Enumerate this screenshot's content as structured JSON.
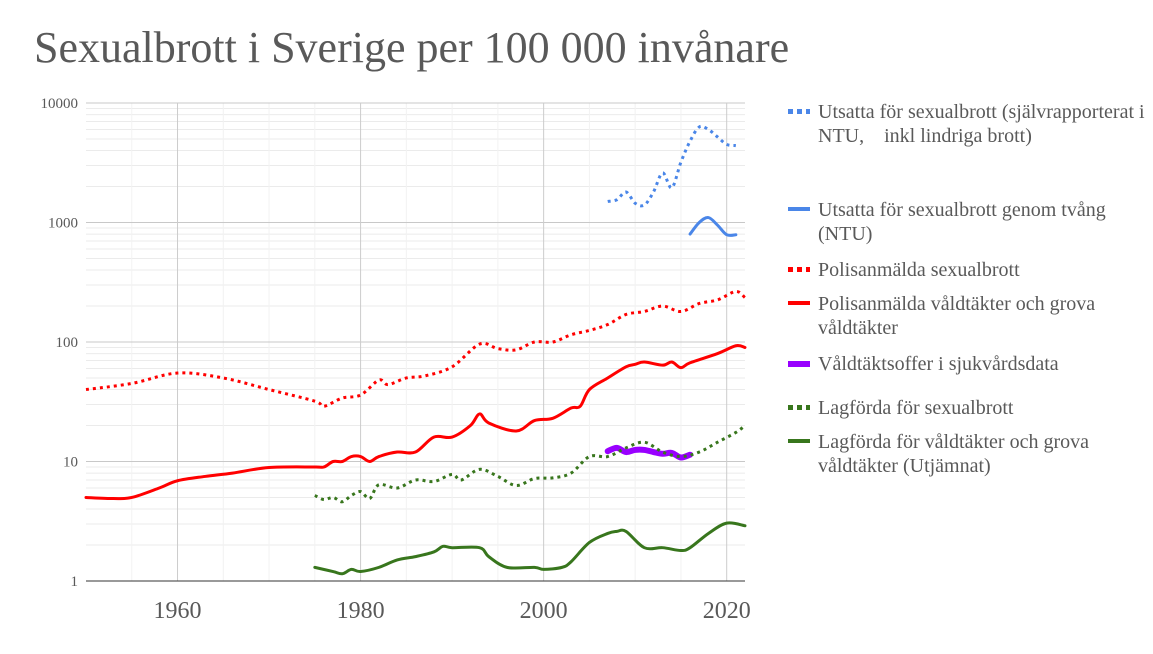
{
  "chart_data": {
    "type": "line",
    "title": "Sexualbrott i Sverige per 100 000 invånare",
    "y_scale": "log",
    "ylim": [
      1,
      10000
    ],
    "xlim": [
      1950,
      2022
    ],
    "x_ticks": [
      1960,
      1980,
      2000,
      2020
    ],
    "y_ticks": [
      1,
      10,
      100,
      1000,
      10000
    ],
    "grid": true,
    "legend_position": "right",
    "series": [
      {
        "name": "Utsatta för sexualbrott (självrapporterat i NTU,    inkl lindriga brott)",
        "color": "#4a86e8",
        "style": "dotted",
        "width": 3,
        "x": [
          2007,
          2008,
          2009,
          2010,
          2011,
          2012,
          2013,
          2014,
          2015,
          2016,
          2017,
          2018,
          2019,
          2020,
          2021
        ],
        "y": [
          1500,
          1550,
          1800,
          1450,
          1400,
          1800,
          2600,
          1950,
          3200,
          4800,
          6300,
          6000,
          5200,
          4500,
          4400
        ]
      },
      {
        "name": "Utsatta för sexualbrott genom tvång (NTU)",
        "color": "#4a86e8",
        "style": "solid",
        "width": 3,
        "x": [
          2016,
          2017,
          2018,
          2019,
          2020,
          2021
        ],
        "y": [
          800,
          1000,
          1100,
          950,
          790,
          790
        ]
      },
      {
        "name": "Polisanmälda sexualbrott",
        "color": "#ff0000",
        "style": "dotted",
        "width": 3,
        "x": [
          1950,
          1955,
          1960,
          1965,
          1970,
          1975,
          1976,
          1978,
          1980,
          1982,
          1983,
          1985,
          1987,
          1990,
          1993,
          1995,
          1997,
          1999,
          2001,
          2003,
          2005,
          2007,
          2009,
          2011,
          2013,
          2015,
          2017,
          2019,
          2021,
          2022
        ],
        "y": [
          40,
          45,
          55,
          50,
          40,
          32,
          29,
          34,
          36,
          48,
          44,
          50,
          52,
          62,
          96,
          88,
          86,
          100,
          100,
          115,
          125,
          140,
          170,
          180,
          200,
          180,
          210,
          225,
          265,
          235
        ]
      },
      {
        "name": "Polisanmälda våldtäkter och grova våldtäkter",
        "color": "#ff0000",
        "style": "solid",
        "width": 3,
        "x": [
          1950,
          1953,
          1955,
          1958,
          1960,
          1963,
          1966,
          1970,
          1975,
          1976,
          1977,
          1978,
          1979,
          1980,
          1981,
          1982,
          1984,
          1986,
          1988,
          1990,
          1992,
          1993,
          1994,
          1997,
          1999,
          2001,
          2003,
          2004,
          2005,
          2007,
          2009,
          2010,
          2011,
          2013,
          2014,
          2015,
          2016,
          2019,
          2021,
          2022
        ],
        "y": [
          5,
          4.9,
          5,
          6,
          6.9,
          7.5,
          8,
          8.9,
          9,
          9,
          10,
          10,
          11,
          11,
          10,
          11,
          12,
          12,
          16,
          16,
          20,
          25,
          21,
          18,
          22,
          23,
          28,
          29,
          40,
          50,
          62,
          65,
          68,
          64,
          68,
          61,
          67,
          80,
          93,
          90
        ]
      },
      {
        "name": "Våldtäktsoffer i sjukvårdsdata",
        "color": "#9900ff",
        "style": "solid",
        "width": 6,
        "x": [
          2007,
          2008,
          2009,
          2010,
          2011,
          2012,
          2013,
          2014,
          2015,
          2016
        ],
        "y": [
          12.2,
          13,
          12,
          12.5,
          12.5,
          12,
          11.6,
          11.8,
          10.8,
          11.4
        ]
      },
      {
        "name": "Lagförda för sexualbrott",
        "color": "#38761d",
        "style": "dotted",
        "width": 3,
        "x": [
          1975,
          1976,
          1977,
          1978,
          1979,
          1980,
          1981,
          1982,
          1984,
          1986,
          1988,
          1990,
          1991,
          1993,
          1995,
          1997,
          1999,
          2001,
          2003,
          2005,
          2007,
          2009,
          2011,
          2013,
          2015,
          2017,
          2019,
          2021,
          2022
        ],
        "y": [
          5.2,
          4.8,
          5,
          4.6,
          5.2,
          5.6,
          4.9,
          6.4,
          6,
          7,
          6.8,
          7.8,
          7,
          8.6,
          7.5,
          6.3,
          7.2,
          7.3,
          8,
          11,
          11,
          13,
          14.5,
          12,
          11,
          12,
          14.5,
          17.5,
          20
        ]
      },
      {
        "name": "Lagförda för våldtäkter och grova våldtäkter (Utjämnat)",
        "color": "#38761d",
        "style": "solid",
        "width": 3,
        "x": [
          1975,
          1977,
          1978,
          1979,
          1980,
          1982,
          1984,
          1986,
          1988,
          1989,
          1990,
          1993,
          1994,
          1996,
          1999,
          2000,
          2002,
          2003,
          2005,
          2007,
          2008,
          2009,
          2011,
          2013,
          2015,
          2016,
          2018,
          2020,
          2022
        ],
        "y": [
          1.3,
          1.2,
          1.15,
          1.25,
          1.2,
          1.3,
          1.5,
          1.6,
          1.75,
          1.95,
          1.9,
          1.9,
          1.6,
          1.3,
          1.3,
          1.25,
          1.3,
          1.45,
          2.1,
          2.5,
          2.6,
          2.6,
          1.9,
          1.9,
          1.8,
          1.9,
          2.5,
          3.05,
          2.9
        ]
      }
    ]
  }
}
